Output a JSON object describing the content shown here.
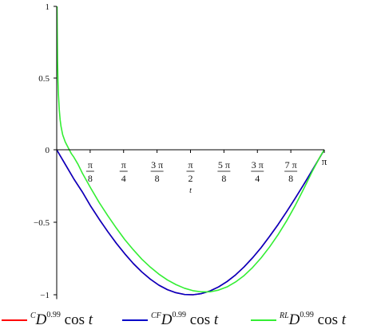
{
  "chart_data": {
    "type": "line",
    "title": "",
    "xlabel": "t",
    "ylabel": "",
    "xlim": [
      0,
      3.14159
    ],
    "ylim": [
      -1.03,
      1.0
    ],
    "grid": false,
    "legend_position": "bottom",
    "y_ticks": [
      {
        "value": 1,
        "label": "1"
      },
      {
        "value": 0.5,
        "label": "0.5"
      },
      {
        "value": 0,
        "label": "0"
      },
      {
        "value": -0.5,
        "label": "−0.5"
      },
      {
        "value": -1,
        "label": "−1"
      }
    ],
    "x_ticks": [
      {
        "value": 0.3927,
        "num": "π",
        "den": "8"
      },
      {
        "value": 0.7854,
        "num": "π",
        "den": "4"
      },
      {
        "value": 1.1781,
        "num": "3 π",
        "den": "8"
      },
      {
        "value": 1.5708,
        "num": "π",
        "den": "2"
      },
      {
        "value": 1.9635,
        "num": "5 π",
        "den": "8"
      },
      {
        "value": 2.3562,
        "num": "3 π",
        "den": "4"
      },
      {
        "value": 2.7489,
        "num": "7 π",
        "den": "8"
      },
      {
        "value": 3.1416,
        "num": "",
        "den": "",
        "label": "π"
      }
    ],
    "series": [
      {
        "name": "CD0.99 cos t",
        "legend_pre": "C",
        "legend_sup": "0.99",
        "legend_fn": "cos t",
        "color": "#ff0000",
        "x": [
          0,
          0.05,
          0.1,
          0.2,
          0.3,
          0.4,
          0.5,
          0.6,
          0.7,
          0.8,
          0.9,
          1.0,
          1.1,
          1.2,
          1.3,
          1.4,
          1.5,
          1.6,
          1.7,
          1.8,
          1.9,
          2.0,
          2.1,
          2.2,
          2.3,
          2.4,
          2.5,
          2.6,
          2.7,
          2.8,
          2.9,
          3.0,
          3.1,
          3.1416
        ],
        "y": [
          0,
          -0.05,
          -0.1,
          -0.2,
          -0.29,
          -0.39,
          -0.48,
          -0.565,
          -0.645,
          -0.718,
          -0.785,
          -0.843,
          -0.893,
          -0.934,
          -0.965,
          -0.986,
          -0.998,
          -1.0,
          -0.992,
          -0.974,
          -0.946,
          -0.909,
          -0.863,
          -0.808,
          -0.745,
          -0.675,
          -0.597,
          -0.515,
          -0.427,
          -0.335,
          -0.24,
          -0.142,
          -0.042,
          0
        ]
      },
      {
        "name": "CFD0.99 cos t",
        "legend_pre": "CF",
        "legend_sup": "0.99",
        "legend_fn": "cos t",
        "color": "#0000c8",
        "x": [
          0,
          0.05,
          0.1,
          0.2,
          0.3,
          0.4,
          0.5,
          0.6,
          0.7,
          0.8,
          0.9,
          1.0,
          1.1,
          1.2,
          1.3,
          1.4,
          1.5,
          1.6,
          1.7,
          1.8,
          1.9,
          2.0,
          2.1,
          2.2,
          2.3,
          2.4,
          2.5,
          2.6,
          2.7,
          2.8,
          2.9,
          3.0,
          3.1,
          3.1416
        ],
        "y": [
          0,
          -0.05,
          -0.1,
          -0.2,
          -0.29,
          -0.39,
          -0.48,
          -0.565,
          -0.645,
          -0.718,
          -0.785,
          -0.843,
          -0.893,
          -0.934,
          -0.965,
          -0.986,
          -0.998,
          -1.0,
          -0.992,
          -0.974,
          -0.946,
          -0.909,
          -0.863,
          -0.808,
          -0.745,
          -0.675,
          -0.597,
          -0.515,
          -0.427,
          -0.335,
          -0.24,
          -0.142,
          -0.042,
          0
        ]
      },
      {
        "name": "RLD0.99 cos t",
        "legend_pre": "RL",
        "legend_sup": "0.99",
        "legend_fn": "cos t",
        "color": "#33ee33",
        "x": [
          0.004,
          0.006,
          0.01,
          0.015,
          0.02,
          0.03,
          0.04,
          0.05,
          0.07,
          0.1,
          0.13,
          0.17,
          0.2,
          0.25,
          0.3,
          0.4,
          0.5,
          0.6,
          0.7,
          0.8,
          0.9,
          1.0,
          1.1,
          1.2,
          1.3,
          1.4,
          1.5,
          1.6,
          1.7,
          1.8,
          1.9,
          2.0,
          2.1,
          2.2,
          2.3,
          2.4,
          2.5,
          2.6,
          2.7,
          2.8,
          2.9,
          3.0,
          3.1,
          3.1416
        ],
        "y": [
          1.0,
          0.85,
          0.62,
          0.48,
          0.39,
          0.28,
          0.21,
          0.165,
          0.105,
          0.055,
          0.02,
          -0.025,
          -0.05,
          -0.1,
          -0.16,
          -0.265,
          -0.365,
          -0.455,
          -0.54,
          -0.62,
          -0.69,
          -0.755,
          -0.81,
          -0.858,
          -0.898,
          -0.93,
          -0.955,
          -0.972,
          -0.98,
          -0.98,
          -0.968,
          -0.946,
          -0.912,
          -0.868,
          -0.812,
          -0.746,
          -0.67,
          -0.585,
          -0.49,
          -0.385,
          -0.27,
          -0.15,
          -0.04,
          0
        ]
      }
    ]
  }
}
